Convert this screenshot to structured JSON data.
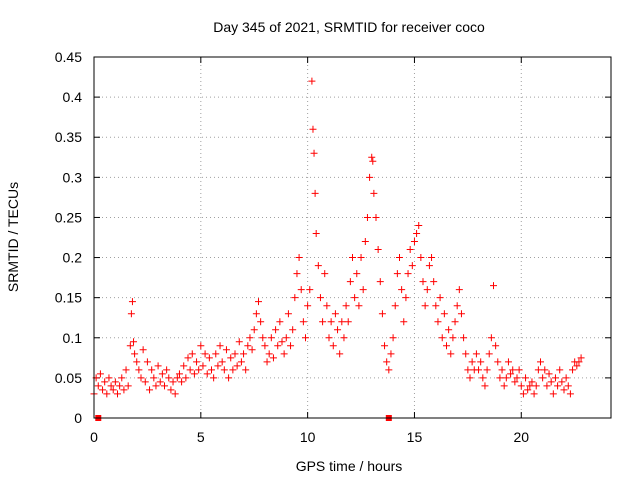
{
  "chart_data": {
    "type": "scatter",
    "title": "Day 345 of 2021, SRMTID for receiver coco",
    "xlabel": "GPS time / hours",
    "ylabel": "SRMTID / TECUs",
    "xlim": [
      0,
      24.2
    ],
    "ylim": [
      0,
      0.45
    ],
    "xticks": [
      0,
      5,
      10,
      15,
      20
    ],
    "xtick_labels": [
      "0",
      "5",
      "10",
      "15",
      "20"
    ],
    "yticks": [
      0,
      0.05,
      0.1,
      0.15,
      0.2,
      0.25,
      0.3,
      0.35,
      0.4,
      0.45
    ],
    "ytick_labels": [
      "0",
      "0.05",
      "0.1",
      "0.15",
      "0.2",
      "0.25",
      "0.3",
      "0.35",
      "0.4",
      "0.45"
    ],
    "grid": true,
    "marker": "plus",
    "color": "#ff0000",
    "series": [
      {
        "name": "SRMTID",
        "points": [
          [
            0.0,
            0.03
          ],
          [
            0.1,
            0.05
          ],
          [
            0.2,
            0.04
          ],
          [
            0.3,
            0.055
          ],
          [
            0.4,
            0.035
          ],
          [
            0.5,
            0.045
          ],
          [
            0.6,
            0.03
          ],
          [
            0.7,
            0.05
          ],
          [
            0.8,
            0.04
          ],
          [
            0.9,
            0.035
          ],
          [
            1.0,
            0.045
          ],
          [
            1.1,
            0.03
          ],
          [
            1.2,
            0.04
          ],
          [
            1.3,
            0.05
          ],
          [
            1.4,
            0.035
          ],
          [
            1.5,
            0.06
          ],
          [
            1.6,
            0.04
          ],
          [
            1.7,
            0.09
          ],
          [
            1.75,
            0.13
          ],
          [
            1.8,
            0.145
          ],
          [
            1.85,
            0.095
          ],
          [
            1.9,
            0.08
          ],
          [
            2.0,
            0.07
          ],
          [
            2.1,
            0.06
          ],
          [
            2.2,
            0.05
          ],
          [
            2.3,
            0.085
          ],
          [
            2.4,
            0.045
          ],
          [
            2.5,
            0.07
          ],
          [
            2.6,
            0.035
          ],
          [
            2.7,
            0.06
          ],
          [
            2.8,
            0.05
          ],
          [
            2.9,
            0.04
          ],
          [
            3.0,
            0.065
          ],
          [
            3.1,
            0.045
          ],
          [
            3.2,
            0.055
          ],
          [
            3.3,
            0.04
          ],
          [
            3.4,
            0.06
          ],
          [
            3.5,
            0.05
          ],
          [
            3.6,
            0.035
          ],
          [
            3.7,
            0.045
          ],
          [
            3.8,
            0.03
          ],
          [
            3.9,
            0.05
          ],
          [
            4.0,
            0.055
          ],
          [
            4.1,
            0.045
          ],
          [
            4.2,
            0.065
          ],
          [
            4.3,
            0.05
          ],
          [
            4.4,
            0.075
          ],
          [
            4.5,
            0.06
          ],
          [
            4.6,
            0.08
          ],
          [
            4.7,
            0.055
          ],
          [
            4.8,
            0.07
          ],
          [
            4.9,
            0.06
          ],
          [
            5.0,
            0.09
          ],
          [
            5.1,
            0.065
          ],
          [
            5.2,
            0.08
          ],
          [
            5.3,
            0.055
          ],
          [
            5.4,
            0.075
          ],
          [
            5.5,
            0.06
          ],
          [
            5.6,
            0.05
          ],
          [
            5.7,
            0.08
          ],
          [
            5.8,
            0.065
          ],
          [
            5.9,
            0.09
          ],
          [
            6.0,
            0.07
          ],
          [
            6.1,
            0.06
          ],
          [
            6.2,
            0.085
          ],
          [
            6.3,
            0.05
          ],
          [
            6.4,
            0.075
          ],
          [
            6.5,
            0.06
          ],
          [
            6.6,
            0.08
          ],
          [
            6.7,
            0.065
          ],
          [
            6.8,
            0.095
          ],
          [
            6.9,
            0.07
          ],
          [
            7.0,
            0.08
          ],
          [
            7.1,
            0.06
          ],
          [
            7.2,
            0.09
          ],
          [
            7.3,
            0.1
          ],
          [
            7.4,
            0.085
          ],
          [
            7.5,
            0.11
          ],
          [
            7.6,
            0.13
          ],
          [
            7.7,
            0.145
          ],
          [
            7.8,
            0.12
          ],
          [
            7.9,
            0.1
          ],
          [
            8.0,
            0.09
          ],
          [
            8.1,
            0.07
          ],
          [
            8.2,
            0.08
          ],
          [
            8.3,
            0.1
          ],
          [
            8.4,
            0.075
          ],
          [
            8.5,
            0.11
          ],
          [
            8.6,
            0.09
          ],
          [
            8.7,
            0.12
          ],
          [
            8.8,
            0.095
          ],
          [
            8.9,
            0.08
          ],
          [
            9.0,
            0.1
          ],
          [
            9.1,
            0.13
          ],
          [
            9.2,
            0.09
          ],
          [
            9.3,
            0.11
          ],
          [
            9.4,
            0.15
          ],
          [
            9.5,
            0.18
          ],
          [
            9.6,
            0.2
          ],
          [
            9.7,
            0.16
          ],
          [
            9.8,
            0.12
          ],
          [
            9.9,
            0.1
          ],
          [
            10.0,
            0.14
          ],
          [
            10.1,
            0.16
          ],
          [
            10.2,
            0.42
          ],
          [
            10.25,
            0.36
          ],
          [
            10.3,
            0.33
          ],
          [
            10.35,
            0.28
          ],
          [
            10.4,
            0.23
          ],
          [
            10.5,
            0.19
          ],
          [
            10.6,
            0.15
          ],
          [
            10.7,
            0.12
          ],
          [
            10.8,
            0.18
          ],
          [
            10.9,
            0.14
          ],
          [
            11.0,
            0.1
          ],
          [
            11.1,
            0.12
          ],
          [
            11.2,
            0.09
          ],
          [
            11.3,
            0.13
          ],
          [
            11.4,
            0.11
          ],
          [
            11.5,
            0.08
          ],
          [
            11.6,
            0.12
          ],
          [
            11.7,
            0.1
          ],
          [
            11.8,
            0.14
          ],
          [
            11.9,
            0.12
          ],
          [
            12.0,
            0.17
          ],
          [
            12.1,
            0.2
          ],
          [
            12.2,
            0.15
          ],
          [
            12.3,
            0.18
          ],
          [
            12.4,
            0.14
          ],
          [
            12.5,
            0.2
          ],
          [
            12.6,
            0.16
          ],
          [
            12.7,
            0.22
          ],
          [
            12.8,
            0.25
          ],
          [
            12.9,
            0.3
          ],
          [
            13.0,
            0.325
          ],
          [
            13.05,
            0.32
          ],
          [
            13.1,
            0.28
          ],
          [
            13.2,
            0.25
          ],
          [
            13.3,
            0.21
          ],
          [
            13.4,
            0.17
          ],
          [
            13.5,
            0.13
          ],
          [
            13.6,
            0.09
          ],
          [
            13.7,
            0.07
          ],
          [
            13.8,
            0.06
          ],
          [
            13.9,
            0.08
          ],
          [
            14.0,
            0.1
          ],
          [
            14.1,
            0.14
          ],
          [
            14.2,
            0.18
          ],
          [
            14.3,
            0.2
          ],
          [
            14.4,
            0.16
          ],
          [
            14.5,
            0.12
          ],
          [
            14.6,
            0.15
          ],
          [
            14.7,
            0.18
          ],
          [
            14.8,
            0.21
          ],
          [
            14.9,
            0.19
          ],
          [
            15.0,
            0.22
          ],
          [
            15.1,
            0.23
          ],
          [
            15.2,
            0.24
          ],
          [
            15.3,
            0.2
          ],
          [
            15.4,
            0.17
          ],
          [
            15.5,
            0.14
          ],
          [
            15.6,
            0.16
          ],
          [
            15.7,
            0.19
          ],
          [
            15.8,
            0.2
          ],
          [
            15.9,
            0.17
          ],
          [
            16.0,
            0.14
          ],
          [
            16.1,
            0.12
          ],
          [
            16.2,
            0.15
          ],
          [
            16.3,
            0.1
          ],
          [
            16.4,
            0.13
          ],
          [
            16.5,
            0.09
          ],
          [
            16.6,
            0.11
          ],
          [
            16.7,
            0.08
          ],
          [
            16.8,
            0.1
          ],
          [
            16.9,
            0.12
          ],
          [
            17.0,
            0.14
          ],
          [
            17.1,
            0.16
          ],
          [
            17.2,
            0.13
          ],
          [
            17.3,
            0.1
          ],
          [
            17.4,
            0.08
          ],
          [
            17.5,
            0.06
          ],
          [
            17.6,
            0.05
          ],
          [
            17.7,
            0.07
          ],
          [
            17.8,
            0.06
          ],
          [
            17.9,
            0.08
          ],
          [
            18.0,
            0.06
          ],
          [
            18.1,
            0.07
          ],
          [
            18.2,
            0.05
          ],
          [
            18.3,
            0.04
          ],
          [
            18.4,
            0.06
          ],
          [
            18.5,
            0.08
          ],
          [
            18.6,
            0.1
          ],
          [
            18.7,
            0.165
          ],
          [
            18.8,
            0.09
          ],
          [
            18.9,
            0.07
          ],
          [
            19.0,
            0.05
          ],
          [
            19.1,
            0.06
          ],
          [
            19.2,
            0.04
          ],
          [
            19.3,
            0.05
          ],
          [
            19.4,
            0.07
          ],
          [
            19.5,
            0.055
          ],
          [
            19.6,
            0.06
          ],
          [
            19.7,
            0.045
          ],
          [
            19.8,
            0.05
          ],
          [
            19.9,
            0.06
          ],
          [
            20.0,
            0.04
          ],
          [
            20.1,
            0.03
          ],
          [
            20.2,
            0.05
          ],
          [
            20.3,
            0.035
          ],
          [
            20.4,
            0.04
          ],
          [
            20.5,
            0.045
          ],
          [
            20.6,
            0.03
          ],
          [
            20.7,
            0.04
          ],
          [
            20.8,
            0.06
          ],
          [
            20.9,
            0.07
          ],
          [
            21.0,
            0.05
          ],
          [
            21.1,
            0.06
          ],
          [
            21.2,
            0.04
          ],
          [
            21.3,
            0.055
          ],
          [
            21.4,
            0.045
          ],
          [
            21.5,
            0.03
          ],
          [
            21.6,
            0.05
          ],
          [
            21.7,
            0.04
          ],
          [
            21.8,
            0.06
          ],
          [
            21.9,
            0.045
          ],
          [
            22.0,
            0.035
          ],
          [
            22.1,
            0.05
          ],
          [
            22.2,
            0.04
          ],
          [
            22.3,
            0.03
          ],
          [
            22.4,
            0.06
          ],
          [
            22.5,
            0.07
          ],
          [
            22.6,
            0.065
          ],
          [
            22.7,
            0.07
          ],
          [
            22.8,
            0.075
          ]
        ]
      }
    ],
    "zero_markers": [
      0.2,
      13.8
    ]
  }
}
